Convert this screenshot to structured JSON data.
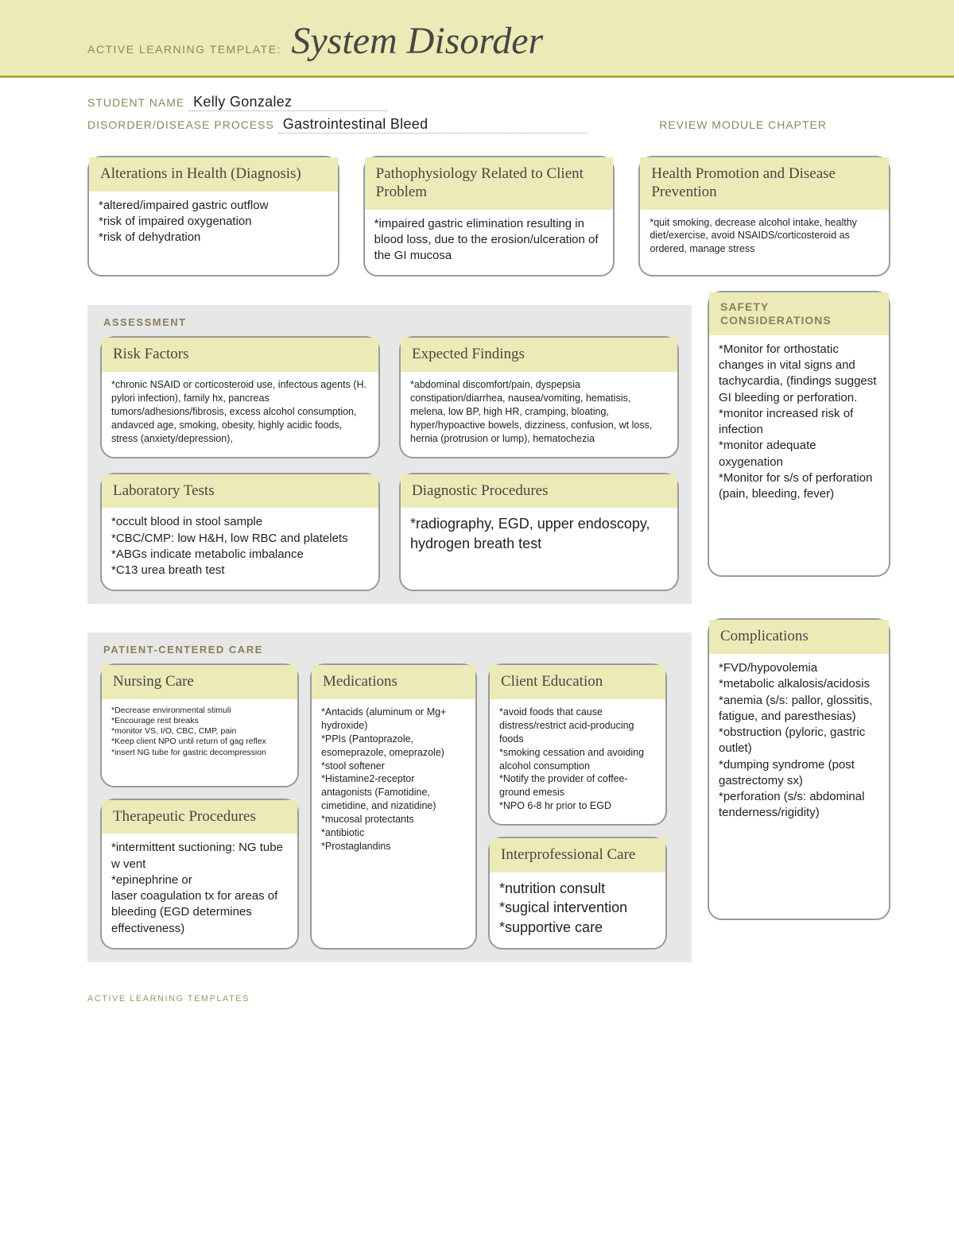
{
  "colors": {
    "banner_bg": "#ecebb8",
    "accent_line": "#b1ad3b",
    "card_header_bg": "#ecebb8",
    "section_bg": "#e7e7e7",
    "card_border": "#9a9a9a",
    "label_color": "#89875b",
    "title_color": "#474642"
  },
  "banner": {
    "prefix": "ACTIVE LEARNING TEMPLATE:",
    "title": "System Disorder"
  },
  "fields": {
    "student_name_label": "STUDENT NAME",
    "student_name": "Kelly Gonzalez",
    "disorder_label": "DISORDER/DISEASE PROCESS",
    "disorder": "Gastrointestinal Bleed",
    "chapter_label": "REVIEW MODULE CHAPTER"
  },
  "top_cards": {
    "alterations": {
      "title": "Alterations in Health (Diagnosis)",
      "body": "*altered/impaired gastric outflow\n*risk of impaired oxygenation\n*risk of dehydration"
    },
    "patho": {
      "title": "Pathophysiology Related to Client Problem",
      "body": "*impaired gastric elimination resulting in blood loss, due to the erosion/ulceration of the GI mucosa"
    },
    "health_promo": {
      "title": "Health Promotion and Disease Prevention",
      "body": "*quit smoking, decrease alcohol intake, healthy diet/exercise, avoid NSAIDS/corticosteroid as ordered, manage stress"
    }
  },
  "assessment": {
    "label": "ASSESSMENT",
    "risk": {
      "title": "Risk Factors",
      "body": "*chronic NSAID or corticosteroid use, infectous agents (H. pylori infection), family hx, pancreas tumors/adhesions/fibrosis, excess alcohol consumption, andavced age, smoking, obesity, highly acidic foods, stress (anxiety/depression),"
    },
    "findings": {
      "title": "Expected Findings",
      "body": "*abdominal discomfort/pain, dyspepsia constipation/diarrhea, nausea/vomiting, hematisis, melena, low BP, high HR, cramping, bloating, hyper/hypoactive bowels, dizziness, confusion, wt loss, hernia (protrusion or lump), hematochezia"
    },
    "labs": {
      "title": "Laboratory Tests",
      "body": "*occult blood in stool sample\n*CBC/CMP: low H&H, low RBC and platelets\n*ABGs indicate metabolic imbalance\n*C13 urea breath test"
    },
    "diag": {
      "title": "Diagnostic Procedures",
      "body": "*radiography, EGD, upper endoscopy, hydrogen breath test"
    }
  },
  "safety": {
    "label": "SAFETY CONSIDERATIONS",
    "body": "*Monitor for orthostatic changes in vital signs and tachycardia, (findings suggest GI bleeding or perforation.\n*monitor increased risk of infection\n*monitor adequate oxygenation\n*Monitor for s/s of perforation (pain, bleeding, fever)"
  },
  "pcc": {
    "label": "PATIENT-CENTERED CARE",
    "nursing": {
      "title": "Nursing Care",
      "body": "*Decrease environmental stimuli\n*Encourage rest breaks\n*monitor VS, I/O, CBC, CMP, pain\n*Keep client NPO until return of gag reflex\n*insert NG tube for gastric decompression"
    },
    "meds": {
      "title": "Medications",
      "body": "*Antacids (aluminum or Mg+ hydroxide)\n*PPIs (Pantoprazole, esomeprazole, omeprazole)\n*stool softener\n*Histamine2-receptor antagonists (Famotidine, cimetidine, and nizatidine)\n*mucosal protectants\n*antibiotic\n*Prostaglandins"
    },
    "client_ed": {
      "title": "Client Education",
      "body": "*avoid foods that cause distress/restrict acid-producing foods\n*smoking cessation and avoiding alcohol consumption\n*Notify the provider of coffee-ground emesis\n*NPO 6-8 hr prior to EGD"
    },
    "therapeutic": {
      "title": "Therapeutic Procedures",
      "body": "*intermittent suctioning: NG tube w vent\n*epinephrine or\nlaser coagulation tx for areas of bleeding (EGD determines effectiveness)"
    },
    "interprof": {
      "title": "Interprofessional Care",
      "body": "*nutrition consult\n*sugical intervention\n*supportive care"
    }
  },
  "complications": {
    "title": "Complications",
    "body": "*FVD/hypovolemia\n*metabolic alkalosis/acidosis\n*anemia (s/s: pallor, glossitis, fatigue, and paresthesias)\n*obstruction (pyloric, gastric outlet)\n*dumping syndrome (post gastrectomy sx)\n*perforation (s/s: abdominal tenderness/rigidity)"
  },
  "footer": "ACTIVE LEARNING TEMPLATES"
}
